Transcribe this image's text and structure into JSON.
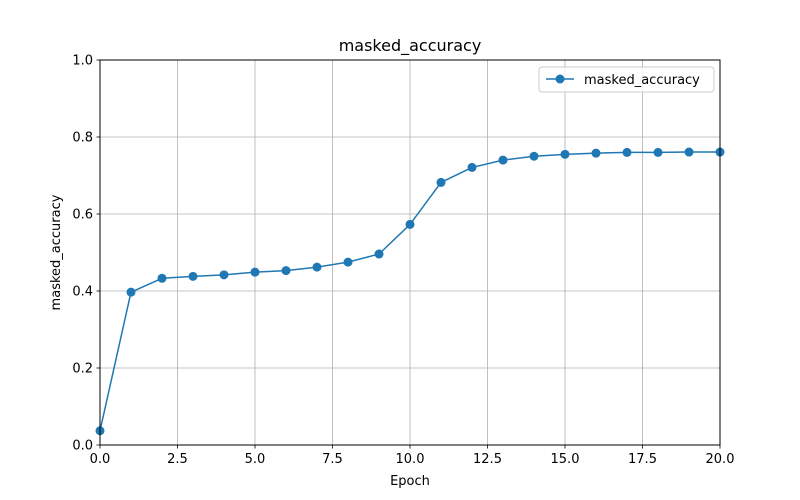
{
  "chart_data": {
    "type": "line",
    "title": "masked_accuracy",
    "xlabel": "Epoch",
    "ylabel": "masked_accuracy",
    "xlim": [
      0,
      20
    ],
    "ylim": [
      0,
      1.0
    ],
    "xticks": [
      "0.0",
      "2.5",
      "5.0",
      "7.5",
      "10.0",
      "12.5",
      "15.0",
      "17.5",
      "20.0"
    ],
    "yticks": [
      "0.0",
      "0.2",
      "0.4",
      "0.6",
      "0.8",
      "1.0"
    ],
    "grid": true,
    "legend_position": "top-right",
    "series": [
      {
        "name": "masked_accuracy",
        "color": "#1f77b4",
        "marker": "circle",
        "x": [
          0,
          1,
          2,
          3,
          4,
          5,
          6,
          7,
          8,
          9,
          10,
          11,
          12,
          13,
          14,
          15,
          16,
          17,
          18,
          19,
          20
        ],
        "y": [
          0.037,
          0.397,
          0.433,
          0.438,
          0.442,
          0.449,
          0.453,
          0.462,
          0.475,
          0.496,
          0.573,
          0.682,
          0.721,
          0.74,
          0.75,
          0.755,
          0.758,
          0.76,
          0.76,
          0.761,
          0.761
        ]
      }
    ]
  }
}
